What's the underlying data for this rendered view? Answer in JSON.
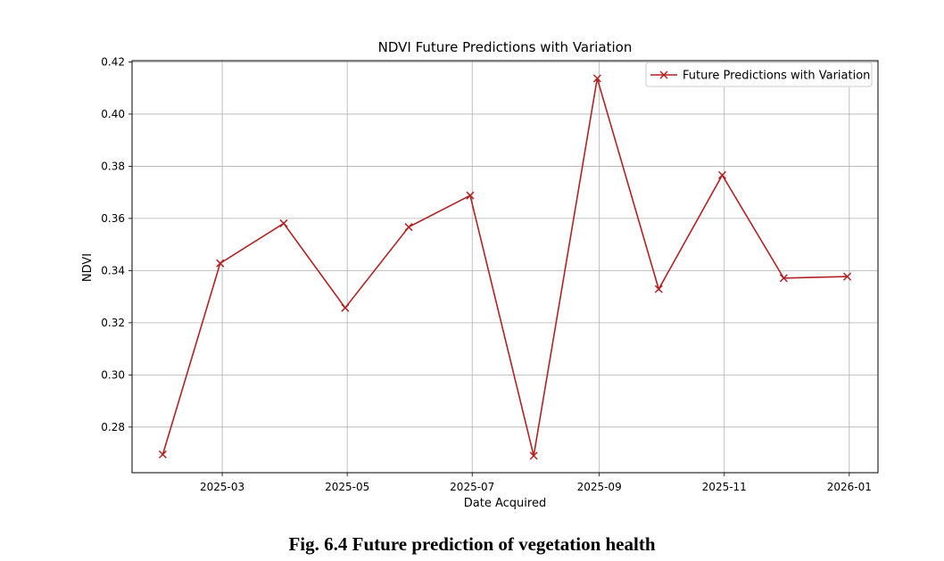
{
  "caption": "Fig. 6.4 Future prediction of vegetation health",
  "chart_data": {
    "type": "line",
    "title": "NDVI Future Predictions with Variation",
    "xlabel": "Date Acquired",
    "ylabel": "NDVI",
    "x": [
      "2025-01-31",
      "2025-02-28",
      "2025-03-31",
      "2025-04-30",
      "2025-05-31",
      "2025-06-30",
      "2025-07-31",
      "2025-08-31",
      "2025-09-30",
      "2025-10-31",
      "2025-11-30",
      "2025-12-31"
    ],
    "series": [
      {
        "name": "Future Predictions with Variation",
        "color": "#b22222",
        "marker": "x",
        "values": [
          0.2695,
          0.3428,
          0.3581,
          0.3257,
          0.3567,
          0.3688,
          0.269,
          0.4137,
          0.3329,
          0.3766,
          0.3371,
          0.3377
        ]
      }
    ],
    "xticks": [
      "2025-03",
      "2025-05",
      "2025-07",
      "2025-09",
      "2025-11",
      "2026-01"
    ],
    "yticks": [
      "0.28",
      "0.30",
      "0.32",
      "0.34",
      "0.36",
      "0.38",
      "0.40",
      "0.42"
    ],
    "ylim": [
      0.2625,
      0.4205
    ],
    "xlim": [
      "2025-01-16",
      "2026-01-15"
    ],
    "grid": true,
    "legend_position": "top-right"
  }
}
